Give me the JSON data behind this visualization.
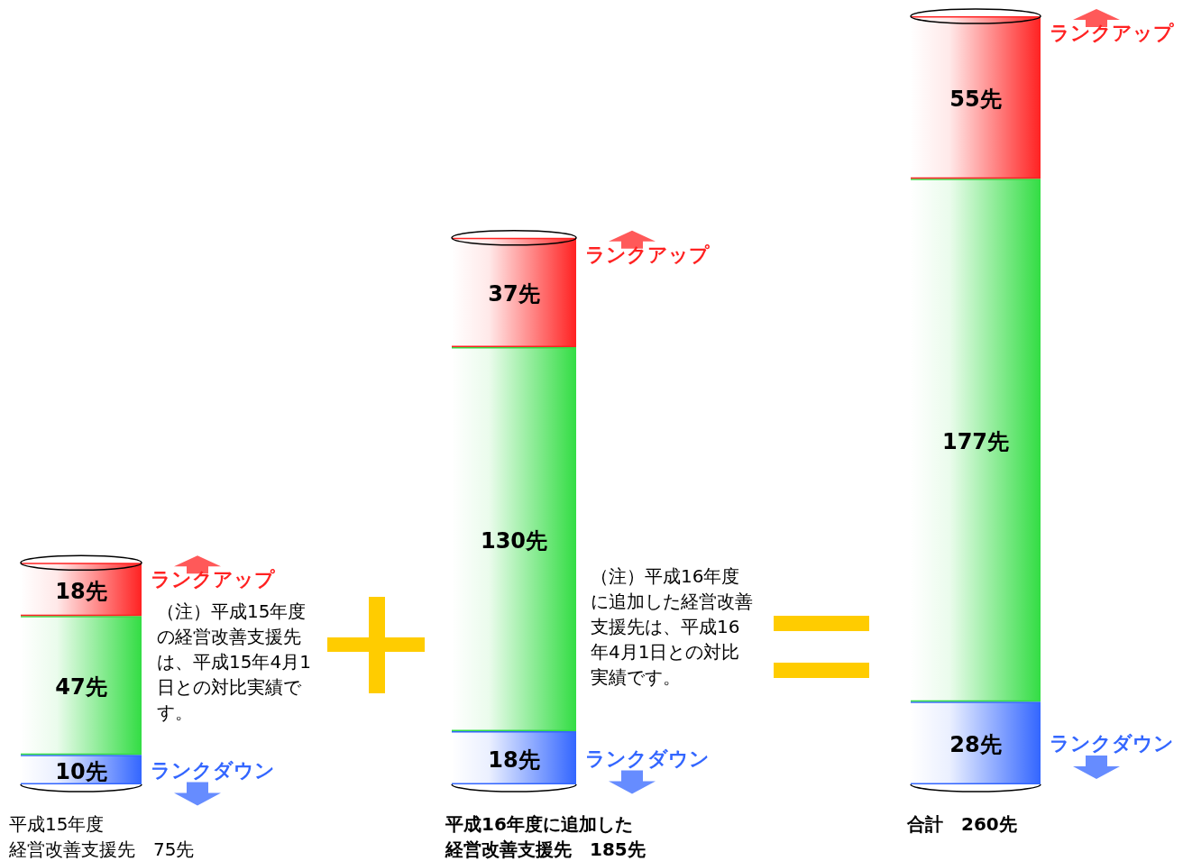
{
  "chart_data": {
    "type": "bar",
    "stacked": true,
    "categories": [
      "平成15年度経営改善支援先　75先",
      "平成16年度に追加した経営改善支援先　185先",
      "合計　260先"
    ],
    "series": [
      {
        "name": "ランクダウン",
        "color": "#3366ff",
        "values": [
          10,
          18,
          28
        ],
        "value_labels": [
          "10先",
          "18先",
          "28先"
        ]
      },
      {
        "color": "#33dd44",
        "values": [
          47,
          130,
          177
        ],
        "value_labels": [
          "47先",
          "130先",
          "177先"
        ]
      },
      {
        "name": "ランクアップ",
        "color": "#ff2222",
        "values": [
          18,
          37,
          55
        ],
        "value_labels": [
          "18先",
          "37先",
          "55先"
        ]
      }
    ],
    "annotations": [
      "（注）平成15年度の経営改善支援先は、平成15年4月1日との対比実績です。",
      "（注）平成16年度に追加した経営改善支援先は、平成16年4月1日との対比実績です。"
    ]
  }
}
